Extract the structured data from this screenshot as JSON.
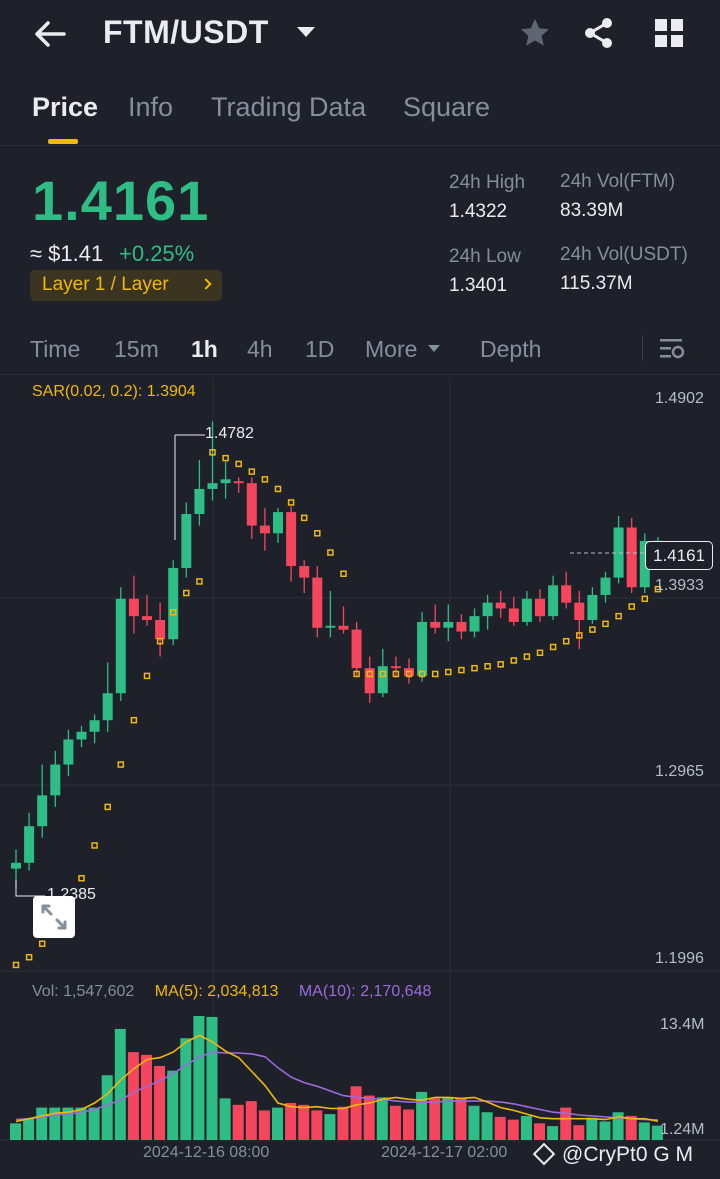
{
  "header": {
    "pair": "FTM/USDT"
  },
  "tabs": [
    "Price",
    "Info",
    "Trading Data",
    "Square"
  ],
  "ticker": {
    "price": "1.4161",
    "usd": "≈ $1.41",
    "change": "+0.25%",
    "tag": "Layer 1 / Layer",
    "high_label": "24h High",
    "high_value": "1.4322",
    "low_label": "24h Low",
    "low_value": "1.3401",
    "vol_base_label": "24h Vol(FTM)",
    "vol_base_value": "83.39M",
    "vol_quote_label": "24h Vol(USDT)",
    "vol_quote_value": "115.37M"
  },
  "intervals": [
    "Time",
    "15m",
    "1h",
    "4h",
    "1D",
    "More",
    "Depth"
  ],
  "colors": {
    "up": "#2ebd85",
    "down": "#f6465d",
    "accent": "#f0b90b",
    "ma10": "#9c6ade"
  },
  "chart": {
    "sar_label": "SAR(0.02, 0.2): 1.3904",
    "price_ticks": [
      "1.4902",
      "1.3933",
      "1.2965",
      "1.1996"
    ],
    "current_price": "1.4161",
    "high_marker": "1.4782",
    "low_marker": "1.2385",
    "vol_label": "Vol: 1,547,602",
    "ma5_label": "MA(5): 2,034,813",
    "ma10_label": "MA(10): 2,170,648",
    "vol_ticks": [
      "13.4M",
      "1.24M"
    ],
    "dates": [
      "2024-12-16 08:00",
      "2024-12-17 02:00"
    ]
  },
  "chart_data": {
    "type": "candlestick",
    "pair": "FTM/USDT",
    "interval": "1h",
    "y_range": [
      1.1996,
      1.4902
    ],
    "candles": [
      {
        "o": 1.246,
        "h": 1.256,
        "l": 1.236,
        "c": 1.249
      },
      {
        "o": 1.249,
        "h": 1.275,
        "l": 1.245,
        "c": 1.268
      },
      {
        "o": 1.268,
        "h": 1.3,
        "l": 1.262,
        "c": 1.284
      },
      {
        "o": 1.284,
        "h": 1.307,
        "l": 1.278,
        "c": 1.3
      },
      {
        "o": 1.3,
        "h": 1.318,
        "l": 1.294,
        "c": 1.313
      },
      {
        "o": 1.313,
        "h": 1.32,
        "l": 1.309,
        "c": 1.317
      },
      {
        "o": 1.317,
        "h": 1.326,
        "l": 1.311,
        "c": 1.323
      },
      {
        "o": 1.323,
        "h": 1.353,
        "l": 1.317,
        "c": 1.337
      },
      {
        "o": 1.337,
        "h": 1.392,
        "l": 1.333,
        "c": 1.386
      },
      {
        "o": 1.386,
        "h": 1.398,
        "l": 1.368,
        "c": 1.377
      },
      {
        "o": 1.377,
        "h": 1.388,
        "l": 1.372,
        "c": 1.375
      },
      {
        "o": 1.375,
        "h": 1.384,
        "l": 1.356,
        "c": 1.365
      },
      {
        "o": 1.365,
        "h": 1.406,
        "l": 1.362,
        "c": 1.402
      },
      {
        "o": 1.402,
        "h": 1.436,
        "l": 1.397,
        "c": 1.43
      },
      {
        "o": 1.43,
        "h": 1.458,
        "l": 1.424,
        "c": 1.443
      },
      {
        "o": 1.443,
        "h": 1.478,
        "l": 1.437,
        "c": 1.446
      },
      {
        "o": 1.446,
        "h": 1.457,
        "l": 1.438,
        "c": 1.448
      },
      {
        "o": 1.447,
        "h": 1.449,
        "l": 1.441,
        "c": 1.446
      },
      {
        "o": 1.446,
        "h": 1.449,
        "l": 1.417,
        "c": 1.424
      },
      {
        "o": 1.424,
        "h": 1.433,
        "l": 1.411,
        "c": 1.42
      },
      {
        "o": 1.42,
        "h": 1.433,
        "l": 1.415,
        "c": 1.431
      },
      {
        "o": 1.431,
        "h": 1.434,
        "l": 1.395,
        "c": 1.403
      },
      {
        "o": 1.403,
        "h": 1.406,
        "l": 1.389,
        "c": 1.397
      },
      {
        "o": 1.397,
        "h": 1.403,
        "l": 1.366,
        "c": 1.371
      },
      {
        "o": 1.371,
        "h": 1.39,
        "l": 1.366,
        "c": 1.372
      },
      {
        "o": 1.372,
        "h": 1.382,
        "l": 1.368,
        "c": 1.37
      },
      {
        "o": 1.37,
        "h": 1.374,
        "l": 1.346,
        "c": 1.35
      },
      {
        "o": 1.35,
        "h": 1.356,
        "l": 1.332,
        "c": 1.337
      },
      {
        "o": 1.337,
        "h": 1.36,
        "l": 1.335,
        "c": 1.351
      },
      {
        "o": 1.351,
        "h": 1.356,
        "l": 1.345,
        "c": 1.35
      },
      {
        "o": 1.35,
        "h": 1.355,
        "l": 1.342,
        "c": 1.346
      },
      {
        "o": 1.346,
        "h": 1.379,
        "l": 1.343,
        "c": 1.374
      },
      {
        "o": 1.374,
        "h": 1.383,
        "l": 1.368,
        "c": 1.371
      },
      {
        "o": 1.371,
        "h": 1.383,
        "l": 1.364,
        "c": 1.374
      },
      {
        "o": 1.374,
        "h": 1.378,
        "l": 1.365,
        "c": 1.369
      },
      {
        "o": 1.369,
        "h": 1.381,
        "l": 1.366,
        "c": 1.377
      },
      {
        "o": 1.377,
        "h": 1.388,
        "l": 1.37,
        "c": 1.384
      },
      {
        "o": 1.384,
        "h": 1.39,
        "l": 1.376,
        "c": 1.381
      },
      {
        "o": 1.381,
        "h": 1.387,
        "l": 1.372,
        "c": 1.374
      },
      {
        "o": 1.374,
        "h": 1.39,
        "l": 1.372,
        "c": 1.386
      },
      {
        "o": 1.386,
        "h": 1.391,
        "l": 1.374,
        "c": 1.377
      },
      {
        "o": 1.377,
        "h": 1.398,
        "l": 1.375,
        "c": 1.393
      },
      {
        "o": 1.393,
        "h": 1.4,
        "l": 1.381,
        "c": 1.384
      },
      {
        "o": 1.384,
        "h": 1.39,
        "l": 1.36,
        "c": 1.375
      },
      {
        "o": 1.375,
        "h": 1.392,
        "l": 1.373,
        "c": 1.388
      },
      {
        "o": 1.388,
        "h": 1.4,
        "l": 1.384,
        "c": 1.397
      },
      {
        "o": 1.397,
        "h": 1.429,
        "l": 1.394,
        "c": 1.423
      },
      {
        "o": 1.423,
        "h": 1.428,
        "l": 1.389,
        "c": 1.392
      },
      {
        "o": 1.392,
        "h": 1.42,
        "l": 1.389,
        "c": 1.416
      },
      {
        "o": 1.416,
        "h": 1.418,
        "l": 1.407,
        "c": 1.4161
      }
    ],
    "sar": [
      1.196,
      1.2,
      1.207,
      1.216,
      1.227,
      1.241,
      1.258,
      1.278,
      1.3,
      1.323,
      1.346,
      1.364,
      1.379,
      1.389,
      1.395,
      1.462,
      1.459,
      1.456,
      1.452,
      1.448,
      1.443,
      1.436,
      1.428,
      1.42,
      1.41,
      1.399,
      1.347,
      1.347,
      1.347,
      1.347,
      1.347,
      1.347,
      1.347,
      1.348,
      1.349,
      1.35,
      1.351,
      1.352,
      1.354,
      1.356,
      1.358,
      1.361,
      1.364,
      1.367,
      1.37,
      1.373,
      1.377,
      1.382,
      1.386,
      1.391
    ],
    "volume": [
      1.8,
      2.3,
      3.5,
      3.5,
      3.5,
      3.5,
      3.5,
      7.0,
      12.0,
      9.5,
      9.2,
      8.0,
      7.5,
      11.0,
      13.4,
      13.3,
      4.5,
      3.8,
      4.2,
      3.2,
      3.5,
      4.0,
      3.8,
      3.2,
      2.8,
      3.6,
      5.8,
      4.8,
      4.6,
      3.7,
      3.3,
      5.2,
      4.5,
      4.6,
      4.5,
      3.7,
      3.0,
      2.5,
      2.2,
      2.6,
      1.8,
      1.5,
      3.5,
      1.6,
      2.4,
      2.0,
      3.0,
      2.6,
      1.9,
      1.55
    ],
    "ma5": [
      2.0,
      2.3,
      2.6,
      2.9,
      3.0,
      3.3,
      4.0,
      5.0,
      6.5,
      7.7,
      8.7,
      8.9,
      9.5,
      10.6,
      11.3,
      10.6,
      9.6,
      8.9,
      7.4,
      5.9,
      4.0,
      3.6,
      3.5,
      3.6,
      3.4,
      3.4,
      3.8,
      4.0,
      4.4,
      4.6,
      4.4,
      4.3,
      4.6,
      4.6,
      4.5,
      4.6,
      4.1,
      3.5,
      3.2,
      2.8,
      2.4,
      2.3,
      2.3,
      2.3,
      2.3,
      2.2,
      2.5,
      2.3,
      2.3,
      2.03
    ],
    "ma10": [
      2.2,
      2.3,
      2.5,
      2.7,
      2.8,
      3.0,
      3.3,
      3.8,
      4.3,
      5.2,
      5.8,
      6.4,
      7.2,
      8.1,
      9.0,
      9.5,
      9.4,
      9.4,
      9.3,
      9.0,
      7.8,
      6.8,
      6.2,
      5.8,
      5.3,
      4.8,
      4.6,
      4.5,
      4.4,
      4.2,
      4.1,
      4.1,
      4.1,
      4.2,
      4.2,
      4.2,
      4.2,
      4.1,
      3.9,
      3.6,
      3.3,
      3.0,
      2.9,
      2.7,
      2.6,
      2.5,
      2.4,
      2.3,
      2.2,
      2.17
    ]
  }
}
